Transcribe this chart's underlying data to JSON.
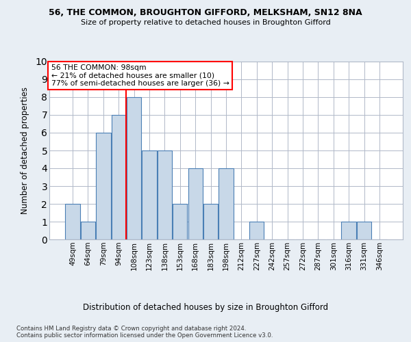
{
  "title1": "56, THE COMMON, BROUGHTON GIFFORD, MELKSHAM, SN12 8NA",
  "title2": "Size of property relative to detached houses in Broughton Gifford",
  "xlabel": "Distribution of detached houses by size in Broughton Gifford",
  "ylabel": "Number of detached properties",
  "footnote": "Contains HM Land Registry data © Crown copyright and database right 2024.\nContains public sector information licensed under the Open Government Licence v3.0.",
  "categories": [
    "49sqm",
    "64sqm",
    "79sqm",
    "94sqm",
    "108sqm",
    "123sqm",
    "138sqm",
    "153sqm",
    "168sqm",
    "183sqm",
    "198sqm",
    "212sqm",
    "227sqm",
    "242sqm",
    "257sqm",
    "272sqm",
    "287sqm",
    "301sqm",
    "316sqm",
    "331sqm",
    "346sqm"
  ],
  "values": [
    2,
    1,
    6,
    7,
    8,
    5,
    5,
    2,
    4,
    2,
    4,
    0,
    1,
    0,
    0,
    0,
    0,
    0,
    1,
    1,
    0
  ],
  "bar_color": "#c8d8e8",
  "bar_edge_color": "#4a7fb5",
  "annotation_text": "56 THE COMMON: 98sqm\n← 21% of detached houses are smaller (10)\n77% of semi-detached houses are larger (36) →",
  "annotation_box_color": "white",
  "annotation_box_edge_color": "red",
  "vline_color": "red",
  "vline_x_index": 3.5,
  "ylim": [
    0,
    10
  ],
  "background_color": "#e8eef4",
  "plot_background_color": "white",
  "grid_color": "#b0b8c8"
}
